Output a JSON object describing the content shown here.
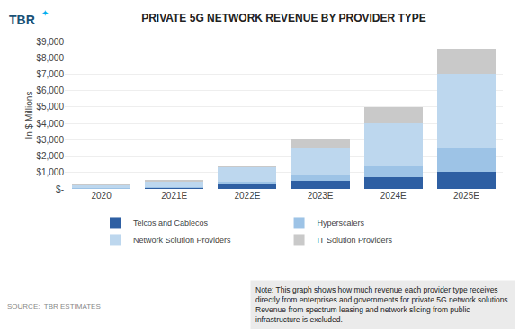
{
  "chart_data": {
    "type": "bar",
    "title": "PRIVATE 5G NETWORK REVENUE BY PROVIDER TYPE",
    "ylabel": "In $ Millions",
    "categories": [
      "2020",
      "2021E",
      "2022E",
      "2023E",
      "2024E",
      "2025E"
    ],
    "series": [
      {
        "name": "Telcos and Cablecos",
        "color": "#2E5FA3",
        "values": [
          50,
          75,
          300,
          500,
          700,
          1050
        ]
      },
      {
        "name": "Hyperscalers",
        "color": "#9DC3E6",
        "values": [
          30,
          50,
          150,
          300,
          650,
          1500
        ]
      },
      {
        "name": "Network Solution Providers",
        "color": "#BDD7EE",
        "values": [
          150,
          350,
          850,
          1700,
          2650,
          4500
        ]
      },
      {
        "name": "IT Solution Providers",
        "color": "#C9C9C9",
        "values": [
          50,
          75,
          150,
          500,
          1000,
          1500
        ]
      }
    ],
    "stacked": true,
    "ylim": [
      0,
      9000
    ],
    "yticks": [
      {
        "value": 0,
        "label": "$-"
      },
      {
        "value": 1000,
        "label": "$1,000"
      },
      {
        "value": 2000,
        "label": "$2,000"
      },
      {
        "value": 3000,
        "label": "$3,000"
      },
      {
        "value": 4000,
        "label": "$4,000"
      },
      {
        "value": 5000,
        "label": "$5,000"
      },
      {
        "value": 6000,
        "label": "$6,000"
      },
      {
        "value": 7000,
        "label": "$7,000"
      },
      {
        "value": 8000,
        "label": "$8,000"
      },
      {
        "value": 9000,
        "label": "$9,000"
      }
    ],
    "grid": true,
    "legend": "bottom",
    "annotations": [
      "Note: This graph shows how much revenue each provider type receives\ndirectly from enterprises and governments for private 5G network solutions.\nRevenue from spectrum leasing and network slicing from public\ninfrastructure is excluded.",
      "SOURCE:  TBR ESTIMATES",
      "TBR",
      "✦"
    ]
  }
}
